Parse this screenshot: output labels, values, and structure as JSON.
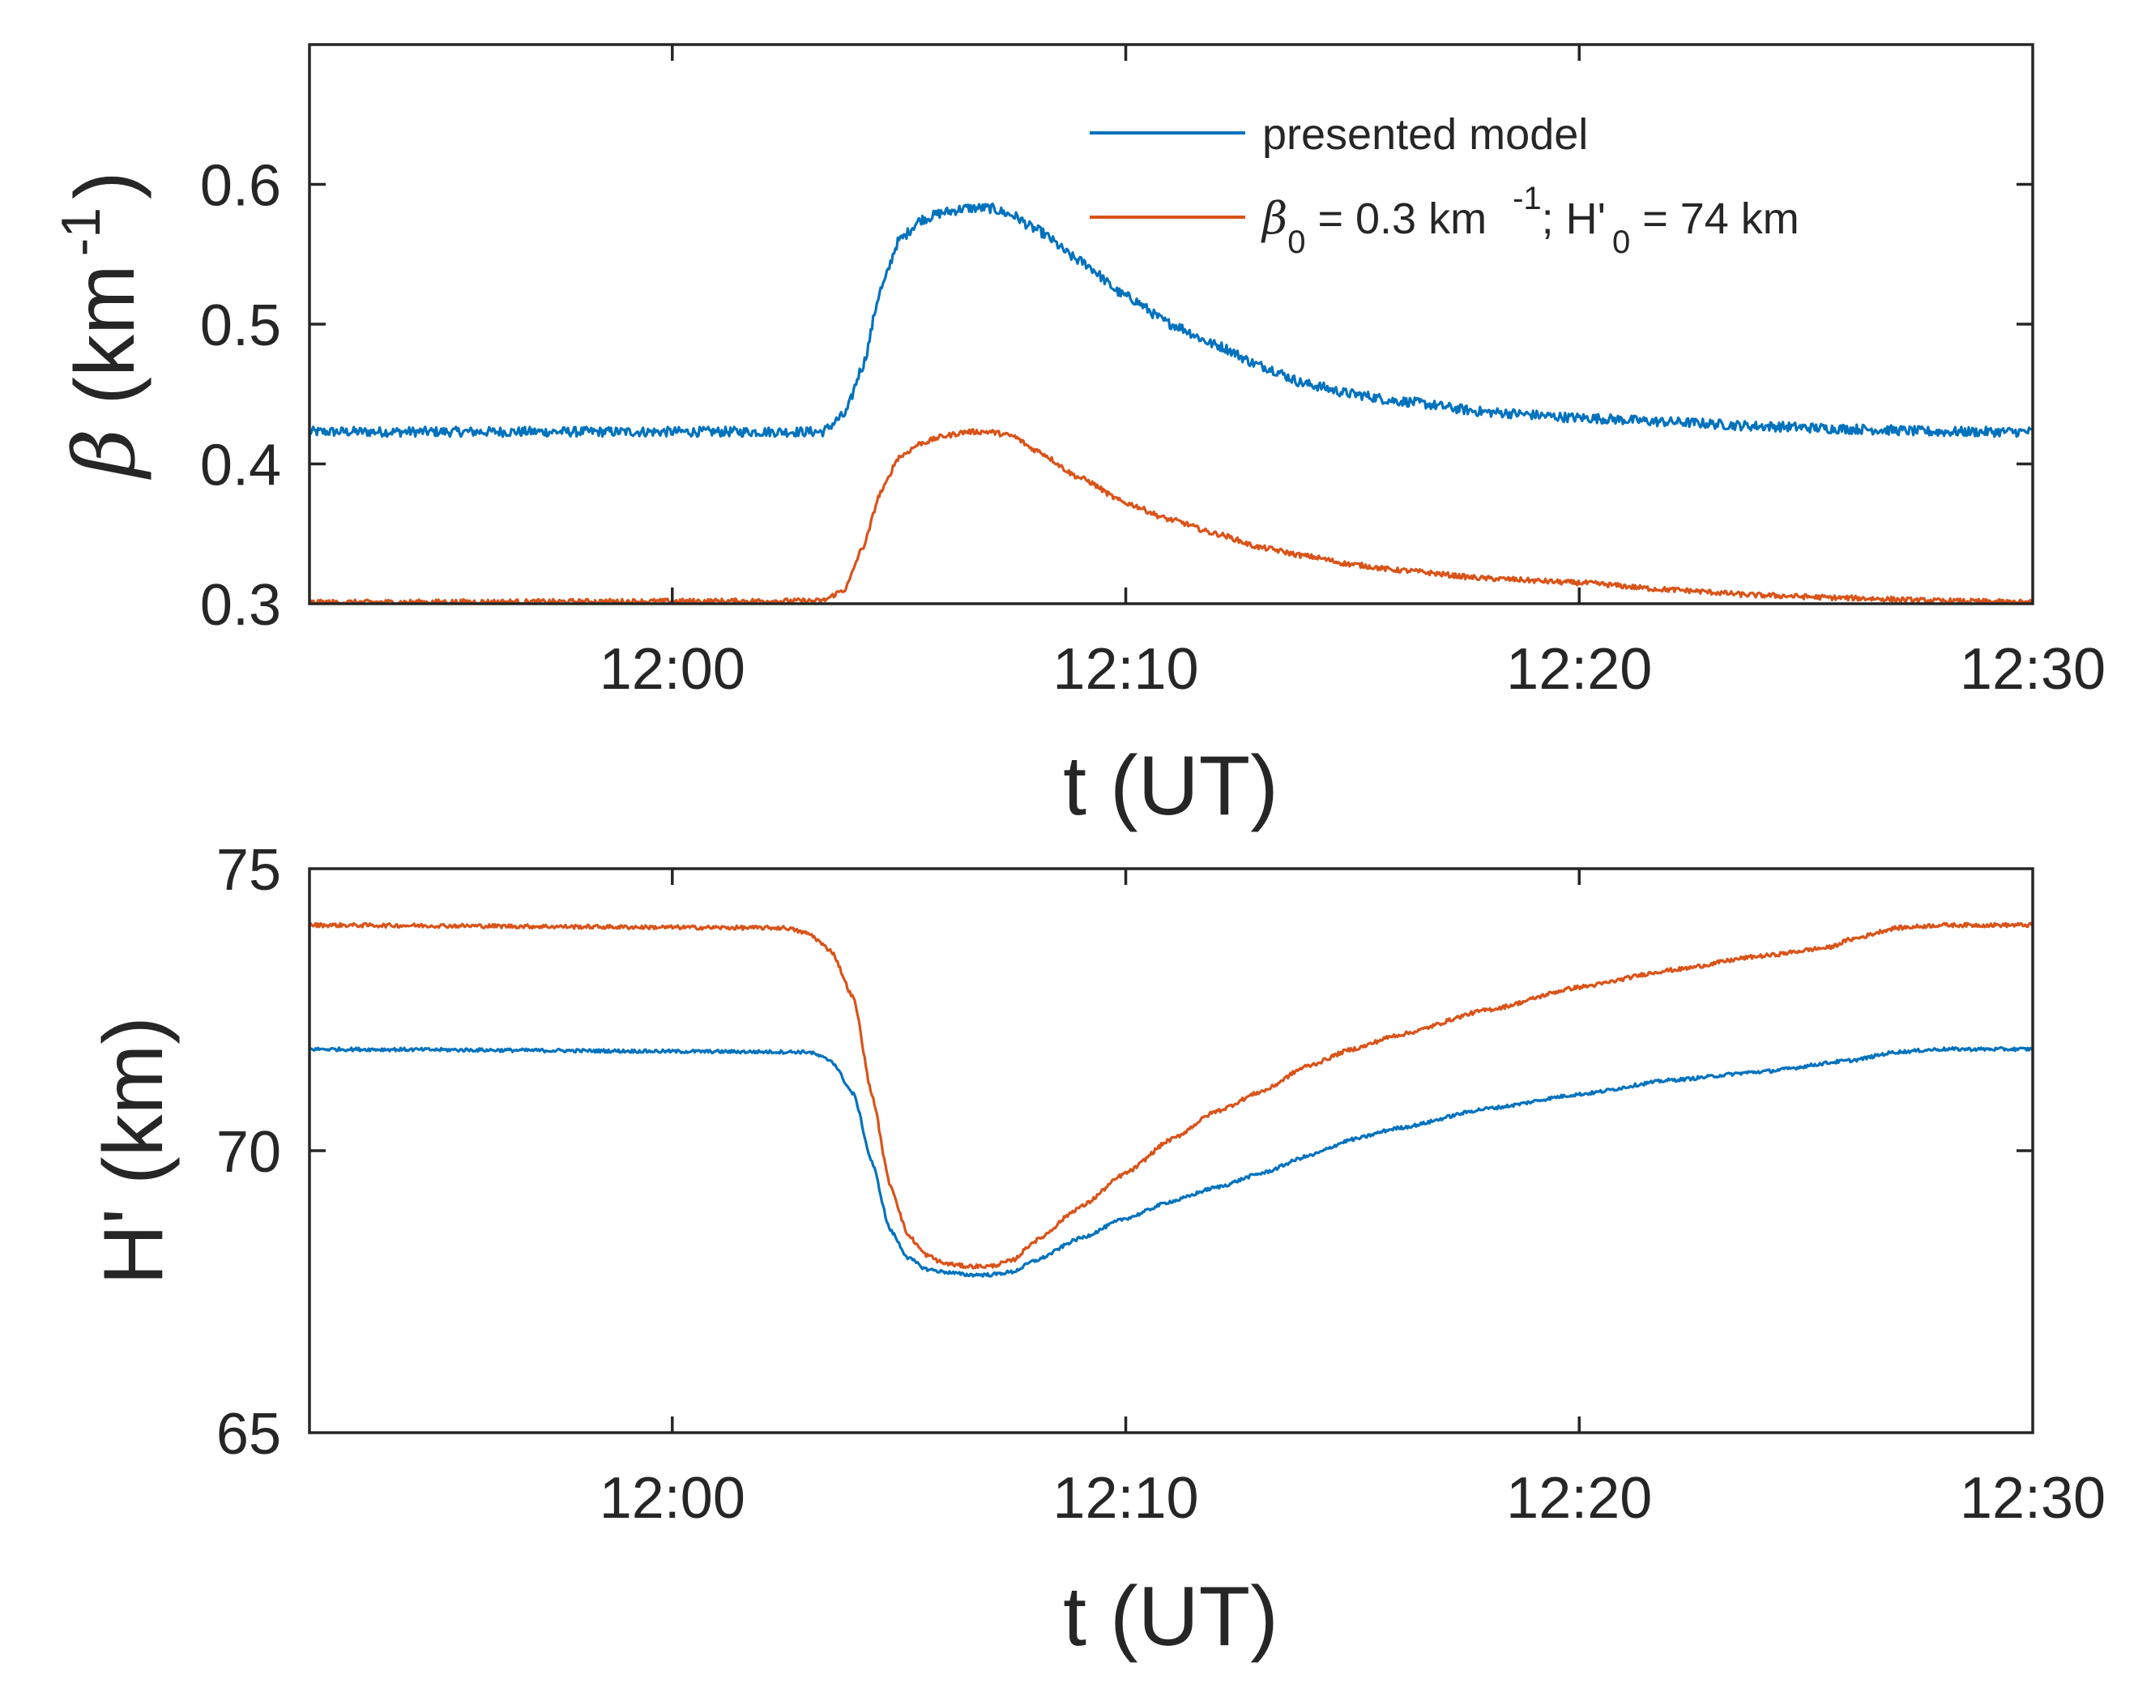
{
  "colors": {
    "blue": "#0072BD",
    "orange": "#D95319",
    "axis": "#262626"
  },
  "chart_data": [
    {
      "type": "line",
      "id": "beta",
      "xlabel": "t (UT)",
      "ylabel_symbol": "β",
      "ylabel_text": " (km",
      "ylabel_exp": "-1",
      "ylabel_close": ")",
      "xlim_minutes": [
        -8,
        30
      ],
      "ylim": [
        0.3,
        0.7
      ],
      "x_ticks": [
        {
          "value": 0,
          "label": "12:00"
        },
        {
          "value": 10,
          "label": "12:10"
        },
        {
          "value": 20,
          "label": "12:20"
        },
        {
          "value": 30,
          "label": "12:30"
        }
      ],
      "y_ticks": [
        {
          "value": 0.3,
          "label": "0.3"
        },
        {
          "value": 0.4,
          "label": "0.4"
        },
        {
          "value": 0.5,
          "label": "0.5"
        },
        {
          "value": 0.6,
          "label": "0.6"
        }
      ],
      "legend": {
        "position": "top-right",
        "entries": [
          {
            "text": "presented model",
            "color": "#0072BD"
          },
          {
            "symbol": "β",
            "sub": "0",
            "mid": " = 0.3 km",
            "sup": "-1",
            "mid2": "; H'",
            "sub2": "0",
            "tail": " = 74 km",
            "color": "#D95319"
          }
        ]
      },
      "series": [
        {
          "name": "presented model",
          "color": "#0072BD",
          "noise": 0.0035,
          "points": [
            [
              -8,
              0.423
            ],
            [
              3.3,
              0.423
            ],
            [
              3.8,
              0.435
            ],
            [
              4.2,
              0.47
            ],
            [
              4.6,
              0.525
            ],
            [
              5.0,
              0.56
            ],
            [
              5.5,
              0.575
            ],
            [
              6.0,
              0.58
            ],
            [
              6.5,
              0.583
            ],
            [
              7.0,
              0.583
            ],
            [
              7.5,
              0.578
            ],
            [
              8.0,
              0.568
            ],
            [
              9.0,
              0.545
            ],
            [
              10.0,
              0.52
            ],
            [
              11.0,
              0.5
            ],
            [
              12.0,
              0.485
            ],
            [
              13.0,
              0.47
            ],
            [
              14.0,
              0.457
            ],
            [
              15.0,
              0.45
            ],
            [
              16.0,
              0.445
            ],
            [
              18.0,
              0.437
            ],
            [
              20.0,
              0.433
            ],
            [
              22.0,
              0.43
            ],
            [
              24.0,
              0.427
            ],
            [
              26.0,
              0.425
            ],
            [
              28.0,
              0.423
            ],
            [
              30.0,
              0.423
            ]
          ]
        },
        {
          "name": "β0 = 0.3 km-1; H'0 = 74 km",
          "color": "#D95319",
          "noise": 0.0018,
          "points": [
            [
              -8,
              0.301
            ],
            [
              3.3,
              0.302
            ],
            [
              3.8,
              0.31
            ],
            [
              4.2,
              0.34
            ],
            [
              4.6,
              0.38
            ],
            [
              5.0,
              0.405
            ],
            [
              5.5,
              0.415
            ],
            [
              6.0,
              0.42
            ],
            [
              6.5,
              0.423
            ],
            [
              7.0,
              0.423
            ],
            [
              7.5,
              0.42
            ],
            [
              8.0,
              0.41
            ],
            [
              9.0,
              0.39
            ],
            [
              10.0,
              0.372
            ],
            [
              11.0,
              0.36
            ],
            [
              12.0,
              0.35
            ],
            [
              13.0,
              0.34
            ],
            [
              14.0,
              0.334
            ],
            [
              15.0,
              0.328
            ],
            [
              16.0,
              0.324
            ],
            [
              18.0,
              0.318
            ],
            [
              20.0,
              0.315
            ],
            [
              22.0,
              0.31
            ],
            [
              24.0,
              0.306
            ],
            [
              26.0,
              0.304
            ],
            [
              28.0,
              0.302
            ],
            [
              30.0,
              0.301
            ]
          ]
        }
      ]
    },
    {
      "type": "line",
      "id": "height",
      "xlabel": "t (UT)",
      "ylabel": "H' (km)",
      "xlim_minutes": [
        -8,
        30
      ],
      "ylim": [
        65,
        75
      ],
      "x_ticks": [
        {
          "value": 0,
          "label": "12:00"
        },
        {
          "value": 10,
          "label": "12:10"
        },
        {
          "value": 20,
          "label": "12:20"
        },
        {
          "value": 30,
          "label": "12:30"
        }
      ],
      "y_ticks": [
        {
          "value": 65,
          "label": "65"
        },
        {
          "value": 70,
          "label": "70"
        },
        {
          "value": 75,
          "label": "75"
        }
      ],
      "series": [
        {
          "name": "presented model",
          "color": "#0072BD",
          "noise": 0.03,
          "points": [
            [
              -8,
              71.8
            ],
            [
              3.0,
              71.75
            ],
            [
              3.5,
              71.6
            ],
            [
              4.0,
              71.0
            ],
            [
              4.4,
              69.8
            ],
            [
              4.8,
              68.6
            ],
            [
              5.2,
              68.1
            ],
            [
              5.6,
              67.9
            ],
            [
              6.0,
              67.85
            ],
            [
              6.5,
              67.8
            ],
            [
              7.0,
              67.8
            ],
            [
              7.5,
              67.85
            ],
            [
              8.0,
              68.05
            ],
            [
              9.0,
              68.45
            ],
            [
              10.0,
              68.8
            ],
            [
              11.0,
              69.1
            ],
            [
              12.0,
              69.35
            ],
            [
              13.0,
              69.6
            ],
            [
              14.0,
              69.9
            ],
            [
              15.0,
              70.2
            ],
            [
              16.0,
              70.4
            ],
            [
              18.0,
              70.75
            ],
            [
              20.0,
              71.0
            ],
            [
              22.0,
              71.25
            ],
            [
              24.0,
              71.4
            ],
            [
              26.0,
              71.6
            ],
            [
              27.0,
              71.75
            ],
            [
              28.0,
              71.8
            ],
            [
              30.0,
              71.8
            ]
          ]
        },
        {
          "name": "β0 = 0.3 km-1; H'0 = 74 km",
          "color": "#D95319",
          "noise": 0.035,
          "points": [
            [
              -8,
              74.0
            ],
            [
              2.5,
              73.95
            ],
            [
              3.0,
              73.85
            ],
            [
              3.5,
              73.55
            ],
            [
              4.0,
              72.7
            ],
            [
              4.4,
              71.0
            ],
            [
              4.8,
              69.4
            ],
            [
              5.2,
              68.5
            ],
            [
              5.6,
              68.15
            ],
            [
              6.0,
              68.0
            ],
            [
              6.5,
              67.95
            ],
            [
              7.0,
              67.95
            ],
            [
              7.5,
              68.05
            ],
            [
              8.0,
              68.4
            ],
            [
              9.0,
              69.0
            ],
            [
              10.0,
              69.6
            ],
            [
              11.0,
              70.2
            ],
            [
              12.0,
              70.7
            ],
            [
              13.0,
              71.05
            ],
            [
              14.0,
              71.5
            ],
            [
              15.0,
              71.8
            ],
            [
              16.0,
              72.05
            ],
            [
              18.0,
              72.5
            ],
            [
              20.0,
              72.9
            ],
            [
              22.0,
              73.2
            ],
            [
              24.0,
              73.45
            ],
            [
              25.5,
              73.6
            ],
            [
              26.0,
              73.75
            ],
            [
              27.0,
              73.95
            ],
            [
              28.0,
              74.0
            ],
            [
              30.0,
              74.0
            ]
          ]
        }
      ]
    }
  ]
}
